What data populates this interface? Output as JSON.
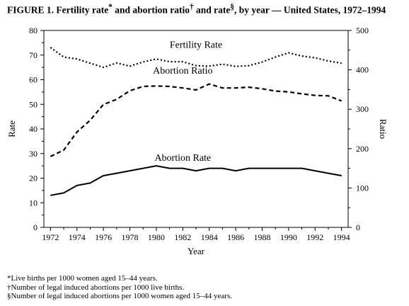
{
  "title_parts": {
    "main": "FIGURE 1. Fertility rate",
    "mark1": "*",
    "between1": " and abortion ratio",
    "mark2": "†",
    "between2": " and rate",
    "mark3": "§",
    "rest": ", by year — United States, 1972–1994"
  },
  "footnotes": [
    "*Live births per 1000 women aged 15–44 years.",
    "†Number of legal induced abortions per 1000 live births.",
    "§Number of legal induced abortions per 1000 women aged 15–44 years."
  ],
  "chart_data": {
    "type": "line",
    "xlabel": "Year",
    "ylabel_left": "Rate",
    "ylabel_right": "Ratio",
    "x_ticks": [
      1972,
      1974,
      1976,
      1978,
      1980,
      1982,
      1984,
      1986,
      1988,
      1990,
      1992,
      1994
    ],
    "y_left_ticks": [
      0,
      10,
      20,
      30,
      40,
      50,
      60,
      70,
      80
    ],
    "y_right_ticks": [
      0,
      100,
      200,
      300,
      400,
      500
    ],
    "ylim_left": [
      0,
      80
    ],
    "ylim_right": [
      0,
      500
    ],
    "xlim": [
      1971.5,
      1994.5
    ],
    "x": [
      1972,
      1973,
      1974,
      1975,
      1976,
      1977,
      1978,
      1979,
      1980,
      1981,
      1982,
      1983,
      1984,
      1985,
      1986,
      1987,
      1988,
      1989,
      1990,
      1991,
      1992,
      1993,
      1994
    ],
    "series": [
      {
        "name": "Fertility Rate",
        "axis": "left",
        "style": "dotted",
        "values": [
          73.1,
          69.2,
          68.4,
          66.7,
          65.0,
          66.8,
          65.5,
          67.2,
          68.4,
          67.3,
          67.3,
          65.7,
          65.5,
          66.3,
          65.4,
          65.7,
          67.2,
          69.2,
          70.9,
          69.6,
          68.9,
          67.6,
          66.7
        ]
      },
      {
        "name": "Abortion Ratio",
        "axis": "right",
        "style": "dashed",
        "values": [
          180,
          196,
          242,
          272,
          312,
          325,
          347,
          358,
          359,
          358,
          354,
          349,
          364,
          354,
          354,
          356,
          352,
          346,
          344,
          339,
          335,
          334,
          321
        ]
      },
      {
        "name": "Abortion Rate",
        "axis": "left",
        "style": "solid",
        "values": [
          13,
          14,
          17,
          18,
          21,
          22,
          23,
          24,
          25,
          24,
          24,
          23,
          24,
          24,
          23,
          24,
          24,
          24,
          24,
          24,
          23,
          22,
          21
        ]
      }
    ],
    "labels": {
      "fertility": "Fertility Rate",
      "ratio": "Abortion Ratio",
      "rate": "Abortion Rate"
    }
  }
}
